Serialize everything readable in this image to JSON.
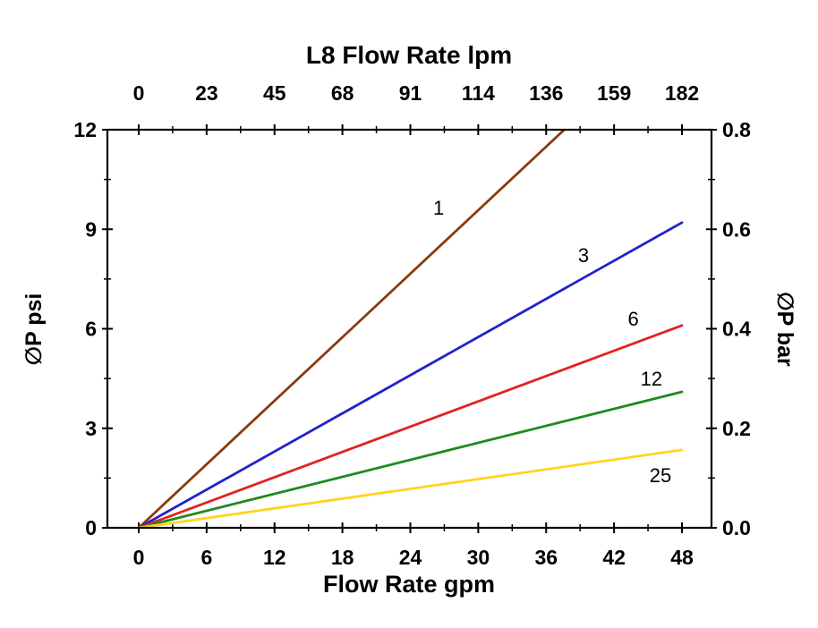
{
  "page": {
    "background": "#ffffff"
  },
  "chart_data": {
    "type": "line",
    "title": "L8 Flow Rate lpm",
    "top_axis": {
      "title": "L8 Flow Rate lpm",
      "unit": "lpm",
      "tick_labels": [
        "0",
        "23",
        "45",
        "68",
        "91",
        "114",
        "136",
        "159",
        "182"
      ]
    },
    "bottom_axis": {
      "title": "Flow Rate gpm",
      "unit": "gpm",
      "tick_labels": [
        "0",
        "6",
        "12",
        "18",
        "24",
        "30",
        "36",
        "42",
        "48"
      ],
      "tick_values": [
        0,
        6,
        12,
        18,
        24,
        30,
        36,
        42,
        48
      ],
      "range": [
        0,
        48
      ]
    },
    "left_axis": {
      "title": "∅P psi",
      "unit": "psi",
      "tick_labels": [
        "0",
        "3",
        "6",
        "9",
        "12"
      ],
      "tick_values": [
        0,
        3,
        6,
        9,
        12
      ],
      "range": [
        0,
        12
      ]
    },
    "right_axis": {
      "title": "∅P bar",
      "unit": "bar",
      "tick_labels": [
        "0.0",
        "0.2",
        "0.4",
        "0.6",
        "0.8"
      ]
    },
    "grid": false,
    "legend": "inline-labels",
    "series": [
      {
        "name": "1",
        "color": "#8b3a0b",
        "points": [
          [
            0,
            0
          ],
          [
            37.6,
            12
          ]
        ],
        "label_pos": [
          26.5,
          9.63
        ]
      },
      {
        "name": "3",
        "color": "#2222cc",
        "points": [
          [
            0,
            0
          ],
          [
            48,
            9.2
          ]
        ],
        "label_pos": [
          39.3,
          8.2
        ]
      },
      {
        "name": "6",
        "color": "#e32222",
        "points": [
          [
            0,
            0
          ],
          [
            48,
            6.1
          ]
        ],
        "label_pos": [
          43.7,
          6.28
        ]
      },
      {
        "name": "12",
        "color": "#218821",
        "points": [
          [
            0,
            0
          ],
          [
            48,
            4.1
          ]
        ],
        "label_pos": [
          45.3,
          4.48
        ]
      },
      {
        "name": "25",
        "color": "#ffd41f",
        "points": [
          [
            0,
            0
          ],
          [
            48,
            2.35
          ]
        ],
        "label_pos": [
          46.1,
          1.57
        ]
      }
    ]
  }
}
